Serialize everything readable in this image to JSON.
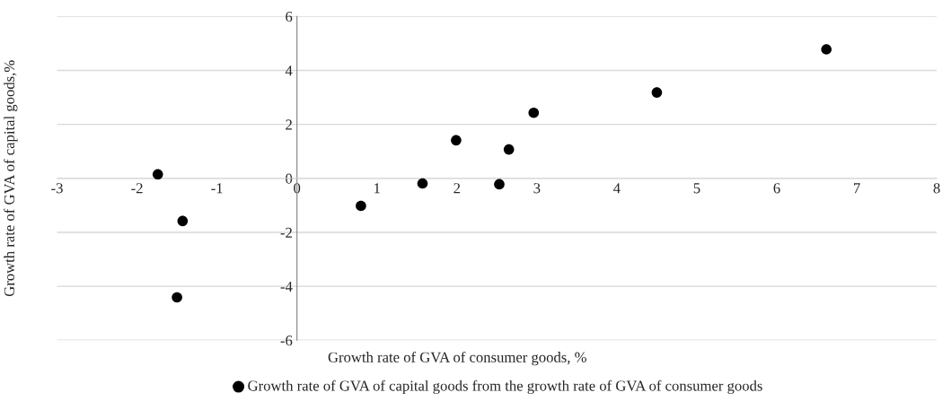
{
  "chart_data": {
    "type": "scatter",
    "xlabel": "Growth rate of GVA of consumer goods, %",
    "ylabel": "Growth rate of GVA of capital goods,%",
    "series": [
      {
        "name": "Growth rate of GVA of capital goods from the growth rate of GVA of consumer goods",
        "color": "#000000",
        "x": [
          -1.74,
          -1.43,
          -1.5,
          0.8,
          1.57,
          1.99,
          2.53,
          2.65,
          2.96,
          4.5,
          6.62
        ],
        "values": [
          0.15,
          -1.58,
          -4.41,
          -1.02,
          -0.19,
          1.41,
          -0.22,
          1.07,
          2.43,
          3.18,
          4.78
        ]
      }
    ],
    "xlim": [
      -3,
      8
    ],
    "xticks": [
      -3,
      -2,
      -1,
      0,
      1,
      2,
      3,
      4,
      5,
      6,
      7,
      8
    ],
    "ylim": [
      -6,
      6
    ],
    "yticks": [
      -6,
      -4,
      -2,
      0,
      2,
      4,
      6
    ],
    "grid": "y",
    "legend": "bottom",
    "marker": "circle"
  }
}
